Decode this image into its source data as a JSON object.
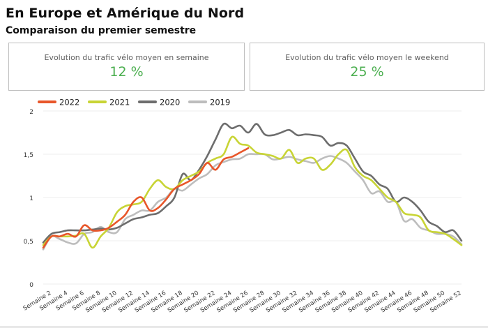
{
  "header": {
    "title": "En Europe et Amérique du Nord",
    "subtitle": "Comparaison du premier semestre"
  },
  "kpis": [
    {
      "label": "Evolution du trafic vélo moyen en semaine",
      "value": "12 %"
    },
    {
      "label": "Evolution du trafic vélo moyen le weekend",
      "value": "25 %"
    }
  ],
  "colors": {
    "accent_green": "#4caf50"
  },
  "chart_data": {
    "type": "line",
    "ylim": [
      0,
      2
    ],
    "yticks": [
      {
        "value": 0,
        "label": "0"
      },
      {
        "value": 0.5,
        "label": "0,5"
      },
      {
        "value": 1,
        "label": "1"
      },
      {
        "value": 1.5,
        "label": "1,5"
      },
      {
        "value": 2,
        "label": "2"
      }
    ],
    "xlim": [
      1,
      52
    ],
    "xticks": [
      {
        "value": 2,
        "label": "Semaine 2"
      },
      {
        "value": 4,
        "label": "Semaine 4"
      },
      {
        "value": 6,
        "label": "Semaine 6"
      },
      {
        "value": 8,
        "label": "Semaine 8"
      },
      {
        "value": 10,
        "label": "Semaine 10"
      },
      {
        "value": 12,
        "label": "Semaine 12"
      },
      {
        "value": 14,
        "label": "Semaine 14"
      },
      {
        "value": 16,
        "label": "Semaine 16"
      },
      {
        "value": 18,
        "label": "Semaine 18"
      },
      {
        "value": 20,
        "label": "Semaine 20"
      },
      {
        "value": 22,
        "label": "Semaine 22"
      },
      {
        "value": 24,
        "label": "Semaine 24"
      },
      {
        "value": 26,
        "label": "Semaine 26"
      },
      {
        "value": 28,
        "label": "Semaine 28"
      },
      {
        "value": 30,
        "label": "Semaine 30"
      },
      {
        "value": 32,
        "label": "Semaine 32"
      },
      {
        "value": 34,
        "label": "Semaine 34"
      },
      {
        "value": 36,
        "label": "Semaine 36"
      },
      {
        "value": 38,
        "label": "Semaine 38"
      },
      {
        "value": 40,
        "label": "Semaine 40"
      },
      {
        "value": 42,
        "label": "Semaine 42"
      },
      {
        "value": 44,
        "label": "Semaine 44"
      },
      {
        "value": 46,
        "label": "Semaine 46"
      },
      {
        "value": 48,
        "label": "Semaine 48"
      },
      {
        "value": 50,
        "label": "Semaine 50"
      },
      {
        "value": 52,
        "label": "Semaine 52"
      }
    ],
    "grid": true,
    "legend_position": "top-left",
    "series": [
      {
        "name": "2019",
        "color": "#bdbdbd",
        "x": [
          1,
          2,
          3,
          4,
          5,
          6,
          7,
          8,
          9,
          10,
          11,
          12,
          13,
          14,
          15,
          16,
          17,
          18,
          19,
          20,
          21,
          22,
          23,
          24,
          25,
          26,
          27,
          28,
          29,
          30,
          31,
          32,
          33,
          34,
          35,
          36,
          37,
          38,
          39,
          40,
          41,
          42,
          43,
          44,
          45,
          46,
          47,
          48,
          49,
          50,
          51,
          52
        ],
        "y": [
          0.4,
          0.55,
          0.52,
          0.48,
          0.47,
          0.58,
          0.6,
          0.66,
          0.6,
          0.6,
          0.75,
          0.8,
          0.85,
          0.85,
          0.95,
          1.0,
          1.1,
          1.08,
          1.15,
          1.22,
          1.27,
          1.37,
          1.41,
          1.44,
          1.45,
          1.5,
          1.5,
          1.5,
          1.44,
          1.45,
          1.47,
          1.44,
          1.42,
          1.4,
          1.45,
          1.48,
          1.45,
          1.4,
          1.3,
          1.2,
          1.05,
          1.07,
          0.95,
          0.95,
          0.73,
          0.75,
          0.65,
          0.62,
          0.58,
          0.58,
          0.55,
          0.46
        ]
      },
      {
        "name": "2020",
        "color": "#6d6d6d",
        "x": [
          1,
          2,
          3,
          4,
          5,
          6,
          7,
          8,
          9,
          10,
          11,
          12,
          13,
          14,
          15,
          16,
          17,
          18,
          19,
          20,
          21,
          22,
          23,
          24,
          25,
          26,
          27,
          28,
          29,
          30,
          31,
          32,
          33,
          34,
          35,
          36,
          37,
          38,
          39,
          40,
          41,
          42,
          43,
          44,
          45,
          46,
          47,
          48,
          49,
          50,
          51,
          52
        ],
        "y": [
          0.48,
          0.58,
          0.6,
          0.62,
          0.62,
          0.62,
          0.63,
          0.64,
          0.63,
          0.65,
          0.7,
          0.75,
          0.77,
          0.8,
          0.82,
          0.9,
          1.0,
          1.27,
          1.2,
          1.32,
          1.48,
          1.67,
          1.85,
          1.8,
          1.83,
          1.75,
          1.85,
          1.73,
          1.72,
          1.75,
          1.78,
          1.72,
          1.73,
          1.72,
          1.7,
          1.6,
          1.63,
          1.6,
          1.45,
          1.3,
          1.25,
          1.15,
          1.1,
          0.95,
          1.0,
          0.95,
          0.85,
          0.72,
          0.67,
          0.6,
          0.62,
          0.5
        ]
      },
      {
        "name": "2021",
        "color": "#c8d435",
        "x": [
          1,
          2,
          3,
          4,
          5,
          6,
          7,
          8,
          9,
          10,
          11,
          12,
          13,
          14,
          15,
          16,
          17,
          18,
          19,
          20,
          21,
          22,
          23,
          24,
          25,
          26,
          27,
          28,
          29,
          30,
          31,
          32,
          33,
          34,
          35,
          36,
          37,
          38,
          39,
          40,
          41,
          42,
          43,
          44,
          45,
          46,
          47,
          48,
          49,
          50,
          51,
          52
        ],
        "y": [
          0.45,
          0.55,
          0.55,
          0.55,
          0.56,
          0.58,
          0.42,
          0.55,
          0.65,
          0.83,
          0.9,
          0.92,
          0.95,
          1.1,
          1.2,
          1.12,
          1.1,
          1.2,
          1.25,
          1.3,
          1.4,
          1.45,
          1.5,
          1.7,
          1.62,
          1.6,
          1.52,
          1.5,
          1.48,
          1.45,
          1.55,
          1.4,
          1.45,
          1.45,
          1.32,
          1.38,
          1.5,
          1.55,
          1.35,
          1.25,
          1.2,
          1.1,
          1.0,
          0.95,
          0.82,
          0.8,
          0.77,
          0.62,
          0.6,
          0.58,
          0.52,
          0.45
        ]
      },
      {
        "name": "2022",
        "color": "#e8562a",
        "x": [
          1,
          2,
          3,
          4,
          5,
          6,
          7,
          8,
          9,
          10,
          11,
          12,
          13,
          14,
          15,
          16,
          17,
          18,
          19,
          20,
          21,
          22,
          23,
          24,
          25,
          26
        ],
        "y": [
          0.42,
          0.55,
          0.55,
          0.58,
          0.55,
          0.68,
          0.62,
          0.62,
          0.65,
          0.72,
          0.8,
          0.95,
          1.0,
          0.85,
          0.88,
          0.98,
          1.1,
          1.15,
          1.2,
          1.27,
          1.4,
          1.32,
          1.44,
          1.47,
          1.52,
          1.57
        ]
      }
    ],
    "legend_order": [
      "2022",
      "2021",
      "2020",
      "2019"
    ]
  }
}
